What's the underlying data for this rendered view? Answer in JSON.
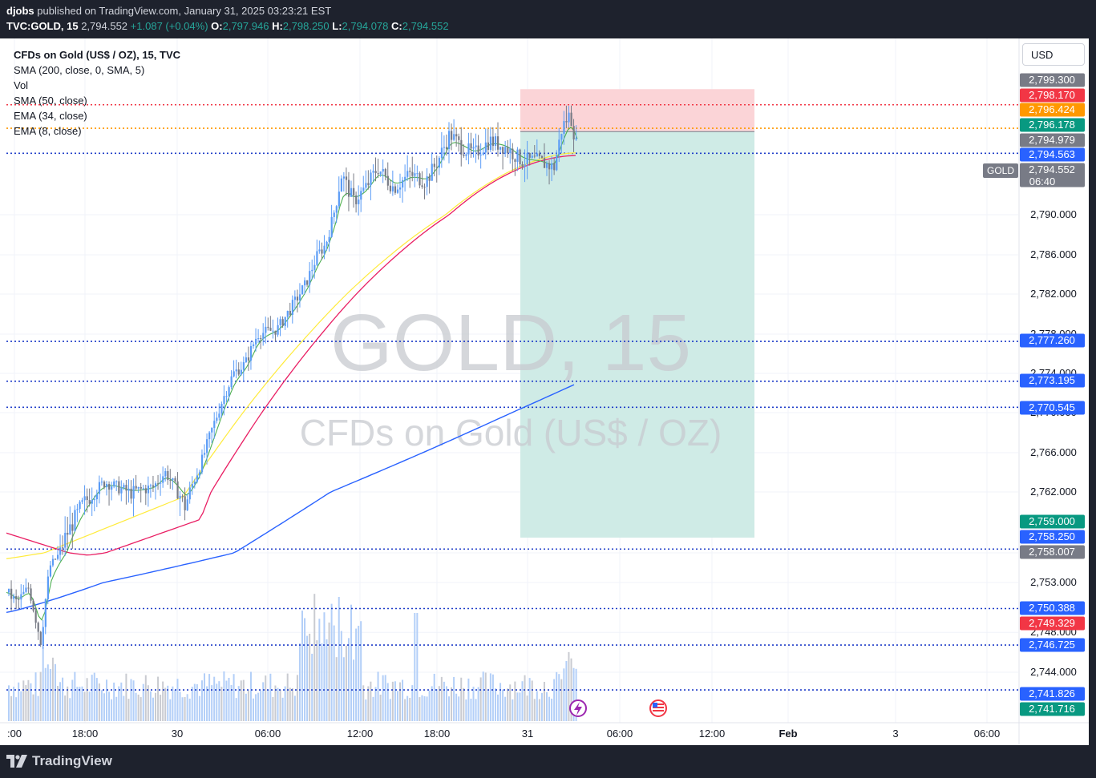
{
  "header": {
    "publisher": "djobs",
    "published_text": " published on TradingView.com, January 31, 2025 03:23:21 EST",
    "symbol": "TVC:GOLD, 15",
    "last": "2,794.552",
    "change": "+1.087 (+0.04%)",
    "o_label": "O:",
    "o_value": "2,797.946",
    "h_label": "H:",
    "h_value": "2,798.250",
    "l_label": "L:",
    "l_value": "2,794.078",
    "c_label": "C:",
    "c_value": "2,794.552"
  },
  "legend": {
    "title": "CFDs on Gold (US$ / OZ), 15, TVC",
    "items": [
      "SMA (200, close, 0, SMA, 5)",
      "Vol",
      "SMA (50, close)",
      "EMA (34, close)",
      "EMA (8, close)"
    ]
  },
  "currency": "USD",
  "watermark": {
    "line1": "GOLD, 15",
    "line2": "CFDs on Gold (US$ / OZ)"
  },
  "symbol_tag": "GOLD",
  "brand": "TradingView",
  "colors": {
    "up": "#5b9cf6",
    "down": "#787b86",
    "sma200": "#2962ff",
    "sma50": "#ffeb3b",
    "ema34": "#e91e63",
    "ema8": "#4caf50",
    "profit_zone": "#cfebe6",
    "loss_zone": "#fbd4d7",
    "hline": "#1e3cc8",
    "hline_red": "#f23645",
    "hline_orange": "#ff9800"
  },
  "chart_data": {
    "type": "candlestick",
    "symbol": "GOLD",
    "interval": "15",
    "ylim": [
      2738,
      2802
    ],
    "x_ticks": [
      ":00",
      "18:00",
      "30",
      "06:00",
      "12:00",
      "18:00",
      "31",
      "06:00",
      "12:00",
      "Feb",
      "3",
      "06:00"
    ],
    "y_ticks": [
      2790,
      2786,
      2782,
      2778,
      2774,
      2770,
      2766,
      2762,
      2758,
      2753,
      2748,
      2744
    ],
    "y_tick_labels": [
      "2,790.000",
      "2,786.000",
      "2,782.000",
      "2,778.000",
      "2,774.000",
      "2,770.000",
      "2,766.000",
      "2,762.000",
      "2,758.000",
      "2,753.000",
      "2,748.000",
      "2,744.000"
    ],
    "price_labels": [
      {
        "label": "2,799.300",
        "value": 2799.3,
        "color": "#787b86"
      },
      {
        "label": "2,798.170",
        "value": 2798.17,
        "color": "#f23645"
      },
      {
        "label": "2,796.424",
        "value": 2796.424,
        "color": "#ff9800"
      },
      {
        "label": "2,796.178",
        "value": 2796.178,
        "color": "#089981"
      },
      {
        "label": "2,794.979",
        "value": 2794.979,
        "color": "#787b86"
      },
      {
        "label": "2,794.563",
        "value": 2794.563,
        "color": "#2962ff"
      },
      {
        "label": "2,794.552",
        "value": 2794.552,
        "color": "#787b86",
        "sub": "06:40"
      },
      {
        "label": "2,777.260",
        "value": 2777.26,
        "color": "#2962ff"
      },
      {
        "label": "2,773.195",
        "value": 2773.195,
        "color": "#2962ff"
      },
      {
        "label": "2,770.545",
        "value": 2770.545,
        "color": "#2962ff"
      },
      {
        "label": "2,759.000",
        "value": 2759.0,
        "color": "#089981"
      },
      {
        "label": "2,758.250",
        "value": 2758.25,
        "color": "#2962ff"
      },
      {
        "label": "2,758.007",
        "value": 2758.007,
        "color": "#787b86"
      },
      {
        "label": "2,750.388",
        "value": 2750.388,
        "color": "#2962ff"
      },
      {
        "label": "2,749.329",
        "value": 2749.329,
        "color": "#f23645"
      },
      {
        "label": "2,746.725",
        "value": 2746.725,
        "color": "#2962ff"
      },
      {
        "label": "2,741.826",
        "value": 2741.826,
        "color": "#2962ff"
      },
      {
        "label": "2,741.716",
        "value": 2741.716,
        "color": "#089981"
      }
    ],
    "horizontal_lines": [
      {
        "value": 2798.17,
        "color": "red"
      },
      {
        "value": 2796.424,
        "color": "orange"
      },
      {
        "value": 2794.563,
        "color": "blue"
      },
      {
        "value": 2777.26,
        "color": "blue"
      },
      {
        "value": 2773.195,
        "color": "blue"
      },
      {
        "value": 2770.545,
        "color": "blue"
      },
      {
        "value": 2758.25,
        "color": "blue"
      },
      {
        "value": 2750.388,
        "color": "blue"
      },
      {
        "value": 2746.725,
        "color": "blue"
      },
      {
        "value": 2741.826,
        "color": "blue"
      }
    ],
    "position": {
      "type": "short",
      "entry": 2796.178,
      "stop": 2799.3,
      "target": 2759.0
    },
    "last_price": 2794.552,
    "countdown": "06:40",
    "series": [
      {
        "name": "SMA (200, close, 0, SMA, 5)",
        "start": 2750.0,
        "end": 2773.0
      },
      {
        "name": "SMA (50, close)",
        "start": 2757.0,
        "end": 2794.6
      },
      {
        "name": "EMA (34, close)",
        "start": 2759.3,
        "end": 2794.4
      },
      {
        "name": "EMA (8, close)",
        "start": 2750.5,
        "end": 2795.0
      }
    ]
  }
}
